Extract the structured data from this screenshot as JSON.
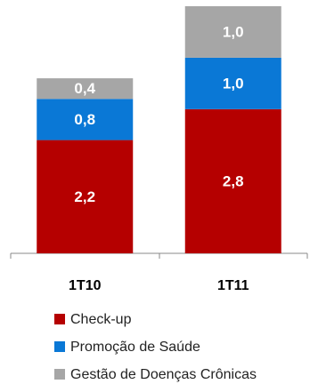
{
  "chart_data": {
    "type": "bar",
    "stacked": true,
    "categories": [
      "1T10",
      "1T11"
    ],
    "series": [
      {
        "name": "Check-up",
        "color": "#b50000",
        "values": [
          2.2,
          2.8
        ],
        "value_labels": [
          "2,2",
          "2,8"
        ]
      },
      {
        "name": "Promoção de Saúde",
        "color": "#0a78d6",
        "values": [
          0.8,
          1.0
        ],
        "value_labels": [
          "0,8",
          "1,0"
        ]
      },
      {
        "name": "Gestão de Doenças Crônicas",
        "color": "#a6a6a6",
        "values": [
          0.4,
          1.0
        ],
        "value_labels": [
          "0,4",
          "1,0"
        ]
      }
    ]
  }
}
